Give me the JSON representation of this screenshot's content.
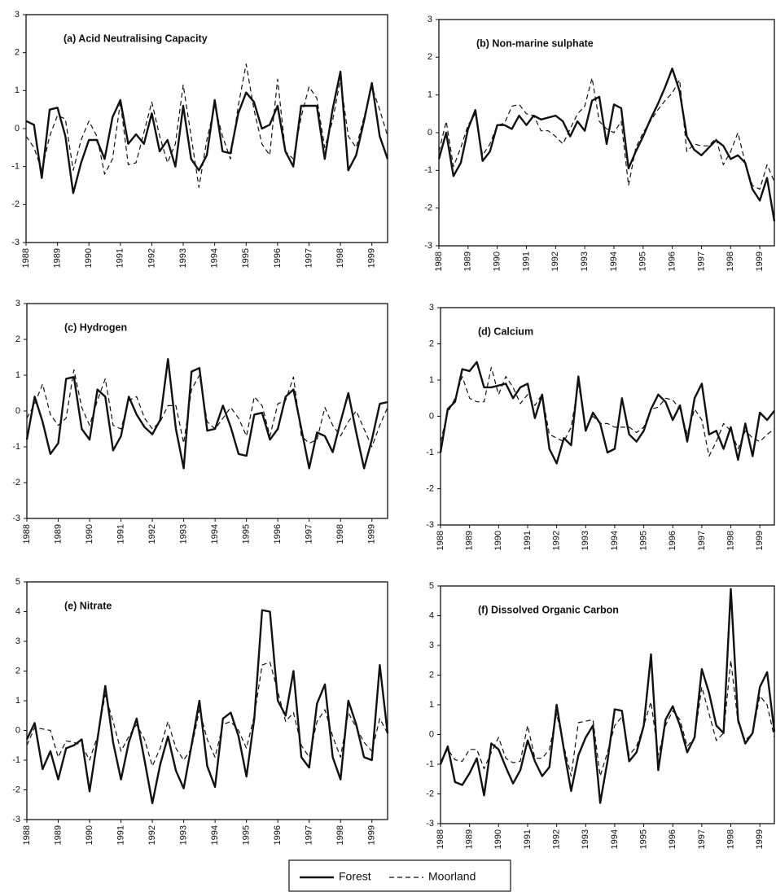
{
  "chart_data": [
    {
      "type": "line",
      "title": "(a) Acid Neutralising Capacity",
      "x": [
        1988,
        1988.25,
        1988.5,
        1988.75,
        1989,
        1989.25,
        1989.5,
        1989.75,
        1990,
        1990.25,
        1990.5,
        1990.75,
        1991,
        1991.25,
        1991.5,
        1991.75,
        1992,
        1992.25,
        1992.5,
        1992.75,
        1993,
        1993.25,
        1993.5,
        1993.75,
        1994,
        1994.25,
        1994.5,
        1994.75,
        1995,
        1995.25,
        1995.5,
        1995.75,
        1996,
        1996.25,
        1996.5,
        1996.75,
        1997,
        1997.25,
        1997.5,
        1997.75,
        1998,
        1998.25,
        1998.5,
        1998.75,
        1999,
        1999.25,
        1999.5
      ],
      "xlim": [
        1988,
        1999.5
      ],
      "xticks": [
        1988,
        1989,
        1990,
        1991,
        1992,
        1993,
        1994,
        1995,
        1996,
        1997,
        1998,
        1999
      ],
      "ylim": [
        -3,
        3
      ],
      "yticks": [
        -3,
        -2,
        -1,
        0,
        1,
        2,
        3
      ],
      "series": [
        {
          "name": "Forest",
          "color": "#111111",
          "line_style": "solid",
          "values": [
            0.2,
            0.1,
            -1.3,
            0.5,
            0.55,
            -0.2,
            -1.7,
            -0.9,
            -0.3,
            -0.3,
            -0.8,
            0.3,
            0.75,
            -0.4,
            -0.15,
            -0.4,
            0.4,
            -0.6,
            -0.3,
            -1.0,
            0.6,
            -0.8,
            -1.1,
            -0.7,
            0.75,
            -0.6,
            -0.65,
            0.4,
            0.95,
            0.7,
            0.0,
            0.1,
            0.6,
            -0.6,
            -1.0,
            0.6,
            0.6,
            0.6,
            -0.8,
            0.5,
            1.5,
            -1.1,
            -0.7,
            0.2,
            1.2,
            -0.2,
            -0.8
          ]
        },
        {
          "name": "Moorland",
          "color": "#111111",
          "line_style": "dashed",
          "values": [
            -0.2,
            -0.5,
            -1.1,
            -0.2,
            0.35,
            0.25,
            -1.1,
            -0.3,
            0.2,
            -0.2,
            -1.2,
            -0.8,
            0.7,
            -0.95,
            -0.9,
            -0.1,
            0.7,
            -0.2,
            -0.9,
            -0.4,
            1.15,
            -0.2,
            -1.55,
            -0.3,
            0.6,
            -0.2,
            -0.8,
            0.6,
            1.7,
            0.5,
            -0.4,
            -0.7,
            1.3,
            -0.6,
            -0.8,
            0.3,
            1.1,
            0.8,
            -0.5,
            0.2,
            1.3,
            -0.2,
            -0.5,
            0.3,
            1.1,
            0.5,
            -0.2
          ]
        }
      ]
    },
    {
      "type": "line",
      "title": "(b) Non-marine sulphate",
      "x": [
        1988,
        1988.25,
        1988.5,
        1988.75,
        1989,
        1989.25,
        1989.5,
        1989.75,
        1990,
        1990.25,
        1990.5,
        1990.75,
        1991,
        1991.25,
        1991.5,
        1991.75,
        1992,
        1992.25,
        1992.5,
        1992.75,
        1993,
        1993.25,
        1993.5,
        1993.75,
        1994,
        1994.25,
        1994.5,
        1994.75,
        1995,
        1995.25,
        1995.5,
        1995.75,
        1996,
        1996.25,
        1996.5,
        1996.75,
        1997,
        1997.25,
        1997.5,
        1997.75,
        1998,
        1998.25,
        1998.5,
        1998.75,
        1999,
        1999.25,
        1999.5
      ],
      "xlim": [
        1988,
        1999.5
      ],
      "xticks": [
        1988,
        1989,
        1990,
        1991,
        1992,
        1993,
        1994,
        1995,
        1996,
        1997,
        1998,
        1999
      ],
      "ylim": [
        -3,
        3
      ],
      "yticks": [
        -3,
        -2,
        -1,
        0,
        1,
        2,
        3
      ],
      "series": [
        {
          "color": "#111111",
          "line_style": "solid",
          "values": [
            -0.7,
            0.0,
            -1.15,
            -0.8,
            0.1,
            0.6,
            -0.75,
            -0.5,
            0.2,
            0.2,
            0.1,
            0.45,
            0.2,
            0.45,
            0.35,
            0.4,
            0.45,
            0.3,
            -0.1,
            0.3,
            0.05,
            0.85,
            0.95,
            -0.3,
            0.75,
            0.65,
            -0.95,
            -0.5,
            -0.1,
            0.35,
            0.75,
            1.2,
            1.7,
            1.1,
            -0.1,
            -0.45,
            -0.6,
            -0.4,
            -0.2,
            -0.35,
            -0.7,
            -0.6,
            -0.8,
            -1.5,
            -1.8,
            -1.2,
            -2.35
          ]
        },
        {
          "color": "#111111",
          "line_style": "dashed",
          "values": [
            -0.5,
            0.3,
            -0.9,
            -0.4,
            0.2,
            0.5,
            -0.6,
            -0.3,
            0.2,
            0.25,
            0.7,
            0.75,
            0.5,
            0.45,
            0.05,
            0.05,
            -0.1,
            -0.3,
            0.1,
            0.5,
            0.7,
            1.45,
            0.3,
            0.1,
            0.0,
            0.3,
            -1.4,
            -0.4,
            0.0,
            0.3,
            0.6,
            0.85,
            1.05,
            1.4,
            -0.5,
            -0.3,
            -0.35,
            -0.35,
            -0.15,
            -0.85,
            -0.5,
            0.0,
            -0.8,
            -1.4,
            -1.5,
            -0.85,
            -1.3
          ]
        }
      ]
    },
    {
      "type": "line",
      "title": "(c) Hydrogen",
      "x": [
        1988,
        1988.25,
        1988.5,
        1988.75,
        1989,
        1989.25,
        1989.5,
        1989.75,
        1990,
        1990.25,
        1990.5,
        1990.75,
        1991,
        1991.25,
        1991.5,
        1991.75,
        1992,
        1992.25,
        1992.5,
        1992.75,
        1993,
        1993.25,
        1993.5,
        1993.75,
        1994,
        1994.25,
        1994.5,
        1994.75,
        1995,
        1995.25,
        1995.5,
        1995.75,
        1996,
        1996.25,
        1996.5,
        1996.75,
        1997,
        1997.25,
        1997.5,
        1997.75,
        1998,
        1998.25,
        1998.5,
        1998.75,
        1999,
        1999.25,
        1999.5
      ],
      "xlim": [
        1988,
        1999.5
      ],
      "xticks": [
        1988,
        1989,
        1990,
        1991,
        1992,
        1993,
        1994,
        1995,
        1996,
        1997,
        1998,
        1999
      ],
      "ylim": [
        -3,
        3
      ],
      "yticks": [
        -3,
        -2,
        -1,
        0,
        1,
        2,
        3
      ],
      "series": [
        {
          "color": "#111111",
          "line_style": "solid",
          "values": [
            -0.8,
            0.4,
            -0.3,
            -1.2,
            -0.9,
            0.9,
            0.95,
            -0.5,
            -0.8,
            0.6,
            0.4,
            -1.1,
            -0.7,
            0.4,
            -0.1,
            -0.45,
            -0.65,
            -0.25,
            1.45,
            -0.5,
            -1.6,
            1.1,
            1.2,
            -0.55,
            -0.5,
            0.15,
            -0.45,
            -1.2,
            -1.25,
            -0.1,
            -0.05,
            -0.8,
            -0.5,
            0.4,
            0.6,
            -0.5,
            -1.6,
            -0.6,
            -0.7,
            -1.15,
            -0.3,
            0.5,
            -0.6,
            -1.6,
            -0.8,
            0.2,
            0.25
          ]
        },
        {
          "color": "#111111",
          "line_style": "dashed",
          "values": [
            -0.2,
            0.2,
            0.75,
            -0.1,
            -0.4,
            -0.2,
            1.15,
            0.1,
            -0.4,
            0.3,
            0.9,
            -0.4,
            -0.5,
            0.3,
            0.4,
            -0.2,
            -0.5,
            -0.3,
            0.15,
            0.15,
            -0.9,
            0.6,
            1.0,
            -0.3,
            -0.5,
            -0.2,
            0.1,
            -0.2,
            -0.7,
            0.4,
            0.15,
            -0.7,
            0.2,
            0.3,
            0.95,
            -0.7,
            -0.9,
            -0.8,
            0.1,
            -0.4,
            -0.7,
            -0.3,
            0.0,
            -0.5,
            -1.0,
            -0.4,
            0.1
          ]
        }
      ]
    },
    {
      "type": "line",
      "title": "(d) Calcium",
      "x": [
        1988,
        1988.25,
        1988.5,
        1988.75,
        1989,
        1989.25,
        1989.5,
        1989.75,
        1990,
        1990.25,
        1990.5,
        1990.75,
        1991,
        1991.25,
        1991.5,
        1991.75,
        1992,
        1992.25,
        1992.5,
        1992.75,
        1993,
        1993.25,
        1993.5,
        1993.75,
        1994,
        1994.25,
        1994.5,
        1994.75,
        1995,
        1995.25,
        1995.5,
        1995.75,
        1996,
        1996.25,
        1996.5,
        1996.75,
        1997,
        1997.25,
        1997.5,
        1997.75,
        1998,
        1998.25,
        1998.5,
        1998.75,
        1999,
        1999.25,
        1999.5
      ],
      "xlim": [
        1988,
        1999.5
      ],
      "xticks": [
        1988,
        1989,
        1990,
        1991,
        1992,
        1993,
        1994,
        1995,
        1996,
        1997,
        1998,
        1999
      ],
      "ylim": [
        -3,
        3
      ],
      "yticks": [
        -3,
        -2,
        -1,
        0,
        1,
        2,
        3
      ],
      "series": [
        {
          "color": "#111111",
          "line_style": "solid",
          "values": [
            -1.0,
            0.2,
            0.4,
            1.3,
            1.25,
            1.5,
            0.8,
            0.8,
            0.85,
            0.9,
            0.5,
            0.8,
            0.9,
            -0.05,
            0.6,
            -0.9,
            -1.3,
            -0.6,
            -0.8,
            1.1,
            -0.4,
            0.1,
            -0.2,
            -1.0,
            -0.9,
            0.5,
            -0.5,
            -0.7,
            -0.4,
            0.2,
            0.6,
            0.4,
            -0.1,
            0.3,
            -0.7,
            0.5,
            0.9,
            -0.5,
            -0.4,
            -0.9,
            -0.3,
            -1.2,
            -0.2,
            -1.1,
            0.1,
            -0.1,
            0.15
          ]
        },
        {
          "color": "#111111",
          "line_style": "dashed",
          "values": [
            -0.7,
            0.1,
            0.5,
            1.1,
            0.5,
            0.4,
            0.4,
            1.35,
            0.6,
            1.1,
            0.8,
            0.35,
            0.6,
            0.3,
            0.6,
            -0.5,
            -0.6,
            -0.7,
            -0.3,
            0.9,
            -0.3,
            0.0,
            -0.2,
            -0.2,
            -0.3,
            -0.3,
            -0.3,
            -0.45,
            -0.3,
            0.2,
            0.25,
            0.5,
            0.45,
            0.2,
            -0.5,
            0.2,
            -0.1,
            -1.1,
            -0.7,
            -0.2,
            -0.4,
            -0.9,
            -0.4,
            -0.6,
            -0.7,
            -0.5,
            -0.35
          ]
        }
      ]
    },
    {
      "type": "line",
      "title": "(e) Nitrate",
      "x": [
        1988,
        1988.25,
        1988.5,
        1988.75,
        1989,
        1989.25,
        1989.5,
        1989.75,
        1990,
        1990.25,
        1990.5,
        1990.75,
        1991,
        1991.25,
        1991.5,
        1991.75,
        1992,
        1992.25,
        1992.5,
        1992.75,
        1993,
        1993.25,
        1993.5,
        1993.75,
        1994,
        1994.25,
        1994.5,
        1994.75,
        1995,
        1995.25,
        1995.5,
        1995.75,
        1996,
        1996.25,
        1996.5,
        1996.75,
        1997,
        1997.25,
        1997.5,
        1997.75,
        1998,
        1998.25,
        1998.5,
        1998.75,
        1999,
        1999.25,
        1999.5
      ],
      "xlim": [
        1988,
        1999.5
      ],
      "xticks": [
        1988,
        1989,
        1990,
        1991,
        1992,
        1993,
        1994,
        1995,
        1996,
        1997,
        1998,
        1999
      ],
      "ylim": [
        -3,
        5
      ],
      "yticks": [
        -3,
        -2,
        -1,
        0,
        1,
        2,
        3,
        4,
        5
      ],
      "series": [
        {
          "color": "#111111",
          "line_style": "solid",
          "values": [
            -0.3,
            0.25,
            -1.3,
            -0.7,
            -1.65,
            -0.6,
            -0.5,
            -0.3,
            -2.05,
            -0.3,
            1.5,
            -0.4,
            -1.65,
            -0.4,
            0.4,
            -1.0,
            -2.45,
            -1.15,
            -0.2,
            -1.35,
            -1.95,
            -0.5,
            1.0,
            -1.2,
            -1.9,
            0.4,
            0.6,
            -0.2,
            -1.55,
            0.4,
            4.05,
            4.0,
            1.0,
            0.5,
            2.0,
            -0.9,
            -1.25,
            0.9,
            1.55,
            -0.9,
            -1.65,
            1.0,
            0.2,
            -0.9,
            -1.0,
            2.2,
            -0.1
          ]
        },
        {
          "color": "#111111",
          "line_style": "dashed",
          "values": [
            -0.5,
            0.1,
            0.05,
            0.0,
            -0.9,
            -0.35,
            -0.4,
            -0.5,
            -1.0,
            -0.2,
            1.2,
            0.3,
            -0.7,
            -0.2,
            0.2,
            -0.3,
            -1.2,
            -0.6,
            0.3,
            -0.6,
            -1.0,
            -0.6,
            0.7,
            -0.3,
            -0.9,
            0.2,
            0.3,
            0.0,
            -0.6,
            0.5,
            2.2,
            2.3,
            1.3,
            0.3,
            0.6,
            -0.5,
            -0.9,
            0.3,
            0.7,
            -0.2,
            -0.9,
            0.6,
            0.1,
            -0.4,
            -0.7,
            0.4,
            -0.1
          ]
        }
      ]
    },
    {
      "type": "line",
      "title": "(f) Dissolved Organic Carbon",
      "x": [
        1988,
        1988.25,
        1988.5,
        1988.75,
        1989,
        1989.25,
        1989.5,
        1989.75,
        1990,
        1990.25,
        1990.5,
        1990.75,
        1991,
        1991.25,
        1991.5,
        1991.75,
        1992,
        1992.25,
        1992.5,
        1992.75,
        1993,
        1993.25,
        1993.5,
        1993.75,
        1994,
        1994.25,
        1994.5,
        1994.75,
        1995,
        1995.25,
        1995.5,
        1995.75,
        1996,
        1996.25,
        1996.5,
        1996.75,
        1997,
        1997.25,
        1997.5,
        1997.75,
        1998,
        1998.25,
        1998.5,
        1998.75,
        1999,
        1999.25,
        1999.5
      ],
      "xlim": [
        1988,
        1999.5
      ],
      "xticks": [
        1988,
        1989,
        1990,
        1991,
        1992,
        1993,
        1994,
        1995,
        1996,
        1997,
        1998,
        1999
      ],
      "ylim": [
        -3,
        5
      ],
      "yticks": [
        -3,
        -2,
        -1,
        0,
        1,
        2,
        3,
        4,
        5
      ],
      "series": [
        {
          "color": "#111111",
          "line_style": "solid",
          "values": [
            -1.0,
            -0.4,
            -1.6,
            -1.7,
            -1.3,
            -0.8,
            -2.05,
            -0.3,
            -0.5,
            -1.1,
            -1.65,
            -1.2,
            -0.2,
            -0.9,
            -1.4,
            -1.1,
            1.0,
            -0.5,
            -1.9,
            -0.7,
            -0.1,
            0.3,
            -2.3,
            -0.9,
            0.85,
            0.8,
            -0.9,
            -0.6,
            0.3,
            2.7,
            -1.2,
            0.5,
            0.95,
            0.3,
            -0.6,
            -0.1,
            2.2,
            1.4,
            0.3,
            0.05,
            4.9,
            0.5,
            -0.3,
            0.05,
            1.6,
            2.1,
            0.1
          ]
        },
        {
          "color": "#111111",
          "line_style": "dashed",
          "values": [
            -0.9,
            -0.5,
            -0.85,
            -0.9,
            -0.5,
            -0.5,
            -1.15,
            -0.6,
            -0.1,
            -0.8,
            -0.95,
            -0.9,
            0.3,
            -0.8,
            -0.8,
            -0.5,
            0.7,
            -0.4,
            -1.4,
            0.4,
            0.45,
            0.5,
            -1.4,
            -0.6,
            0.3,
            0.6,
            -0.7,
            -0.4,
            0.3,
            1.1,
            -0.7,
            0.3,
            0.8,
            0.5,
            -0.4,
            -0.1,
            1.6,
            0.7,
            -0.2,
            0.05,
            2.5,
            0.4,
            -0.2,
            0.05,
            1.3,
            1.0,
            -0.1
          ]
        }
      ]
    }
  ]
}
